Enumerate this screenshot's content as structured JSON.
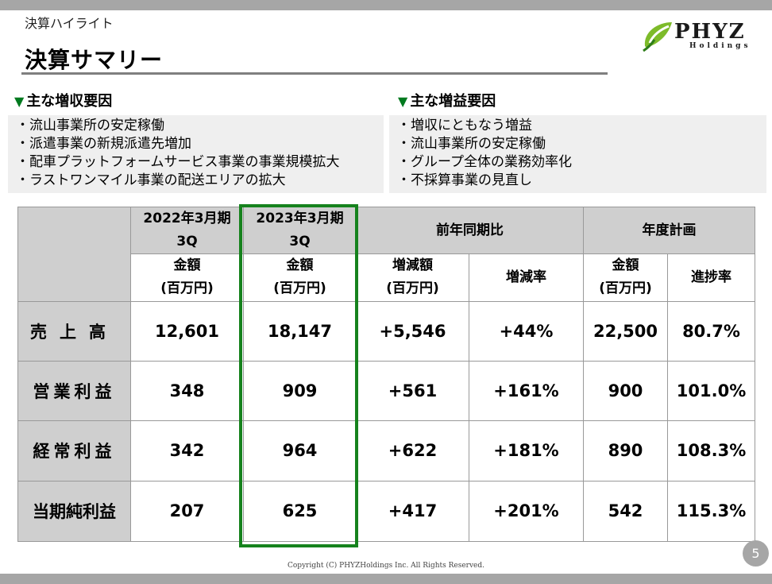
{
  "section_label": "決算ハイライト",
  "title": "決算サマリー",
  "logo": {
    "name": "PHYZ",
    "sub": "Holdings"
  },
  "revenue_factors": {
    "heading": "主な増収要因",
    "items": [
      "・流山事業所の安定稼働",
      "・派遣事業の新規派遣先増加",
      "・配車プラットフォームサービス事業の事業規模拡大",
      "・ラストワンマイル事業の配送エリアの拡大"
    ]
  },
  "profit_factors": {
    "heading": "主な増益要因",
    "items": [
      "・増収にともなう増益",
      "・流山事業所の安定稼働",
      "・グループ全体の業務効率化",
      "・不採算事業の見直し"
    ]
  },
  "table": {
    "headers": {
      "prev_year": "2022年3月期",
      "prev_period": "3Q",
      "curr_year": "2023年3月期",
      "curr_period": "3Q",
      "yoy": "前年同期比",
      "plan": "年度計画",
      "amount": "金額",
      "unit": "(百万円)",
      "change_amount": "増減額",
      "change_rate": "増減率",
      "progress": "進捗率"
    },
    "rows": [
      {
        "label": "売上高",
        "prev": "12,601",
        "curr": "18,147",
        "change": "+5,546",
        "rate": "+44%",
        "plan": "22,500",
        "progress": "80.7%"
      },
      {
        "label": "営業利益",
        "prev": "348",
        "curr": "909",
        "change": "+561",
        "rate": "+161%",
        "plan": "900",
        "progress": "101.0%"
      },
      {
        "label": "経常利益",
        "prev": "342",
        "curr": "964",
        "change": "+622",
        "rate": "+181%",
        "plan": "890",
        "progress": "108.3%"
      },
      {
        "label": "当期純利益",
        "prev": "207",
        "curr": "625",
        "change": "+417",
        "rate": "+201%",
        "plan": "542",
        "progress": "115.3%"
      }
    ]
  },
  "colors": {
    "highlight": "#16821d",
    "accent_triangle": "#007a1f",
    "header_fill": "#cfcfcf"
  },
  "copyright": "Copyright (C) PHYZHoldings Inc. All Rights Reserved.",
  "page_number": "5"
}
